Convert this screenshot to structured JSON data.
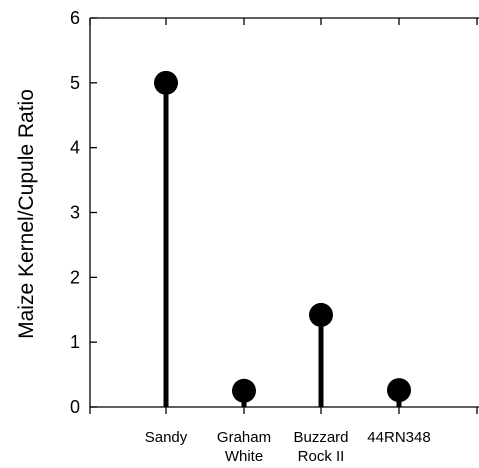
{
  "chart_data": {
    "type": "lollipop",
    "categories": [
      "Sandy",
      "Graham\nWhite",
      "Buzzard\nRock II",
      "44RN348"
    ],
    "values": [
      5.0,
      0.25,
      1.42,
      0.26
    ],
    "ylabel": "Maize Kernel/Cupule Ratio",
    "xlabel": "",
    "title": "",
    "ylim": [
      0,
      6
    ],
    "yticks": [
      0,
      1,
      2,
      3,
      4,
      5,
      6
    ],
    "grid": false,
    "color": "#000000"
  }
}
